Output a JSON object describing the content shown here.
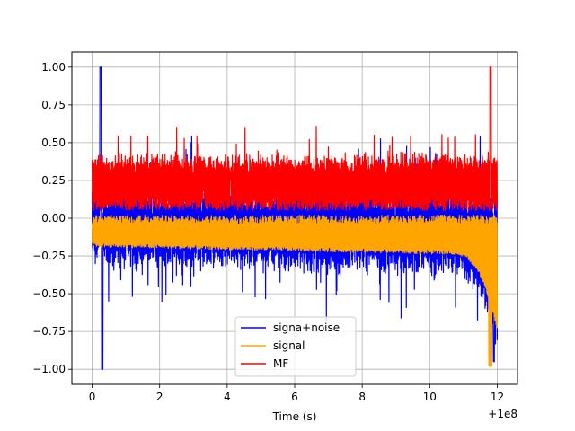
{
  "chart_data": {
    "type": "line",
    "title": "",
    "xlabel": "Time (s)",
    "ylabel": "",
    "x_offset_label": "+1e8",
    "xlim": [
      -0.6,
      12.6
    ],
    "ylim": [
      -1.1,
      1.1
    ],
    "x_ticks": [
      0,
      2,
      4,
      6,
      8,
      10,
      12
    ],
    "x_tick_labels": [
      "0",
      "2",
      "4",
      "6",
      "8",
      "10",
      "12"
    ],
    "y_ticks": [
      -1.0,
      -0.75,
      -0.5,
      -0.25,
      0.0,
      0.25,
      0.5,
      0.75,
      1.0
    ],
    "y_tick_labels": [
      "−1.00",
      "−0.75",
      "−0.50",
      "−0.25",
      "0.00",
      "0.25",
      "0.50",
      "0.75",
      "1.00"
    ],
    "grid": true,
    "legend_position": "lower center",
    "series": [
      {
        "name": "signa+noise",
        "color": "#0000ff",
        "x_range": [
          0,
          12
        ],
        "y_range": [
          -1.0,
          1.0
        ],
        "style": "dense-noise"
      },
      {
        "name": "signal",
        "color": "#ffa500",
        "x_range": [
          0,
          12
        ],
        "y_range": [
          -0.98,
          0.05
        ],
        "style": "chirp"
      },
      {
        "name": "MF",
        "color": "#ff0000",
        "x_range": [
          0,
          12
        ],
        "y_range": [
          -0.05,
          1.0
        ],
        "style": "dense-noise-positive"
      }
    ]
  }
}
